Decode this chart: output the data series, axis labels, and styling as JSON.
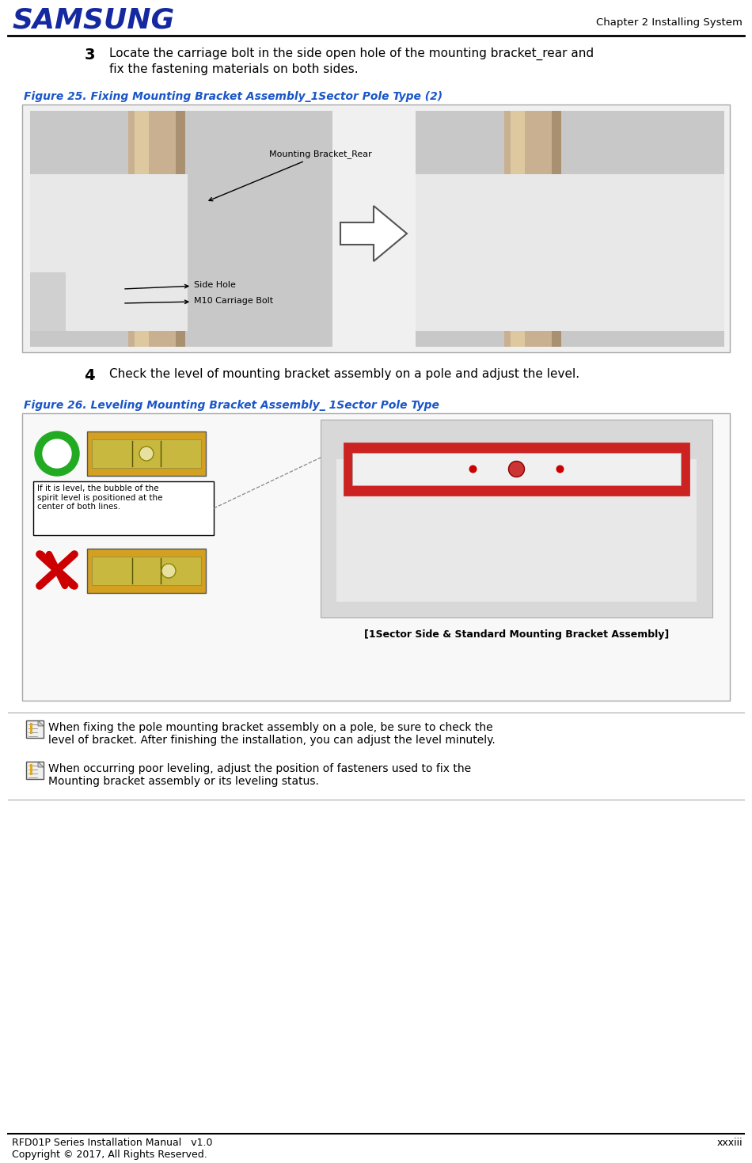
{
  "page_bg": "#ffffff",
  "samsung_text": "SAMSUNG",
  "samsung_color": "#1428A0",
  "chapter_text": "Chapter 2 Installing System",
  "footer_left": "RFD01P Series Installation Manual   v1.0",
  "footer_right": "xxxiii",
  "footer_line2": "Copyright © 2017, All Rights Reserved.",
  "step3_number": "3",
  "step3_text_line1": "Locate the carriage bolt in the side open hole of the mounting bracket_rear and",
  "step3_text_line2": "fix the fastening materials on both sides.",
  "fig25_caption": "Figure 25. Fixing Mounting Bracket Assembly_1Sector Pole Type (2)",
  "fig25_caption_color": "#1a56c8",
  "fig25_box_border": "#a0a0a0",
  "fig25_annotation1": "Mounting Bracket_Rear",
  "fig25_annotation2": "Side Hole",
  "fig25_annotation3": "M10 Carriage Bolt",
  "step4_number": "4",
  "step4_text": "Check the level of mounting bracket assembly on a pole and adjust the level.",
  "fig26_caption": "Figure 26. Leveling Mounting Bracket Assembly_ 1Sector Pole Type",
  "fig26_caption_color": "#1a56c8",
  "fig26_box_border": "#a0a0a0",
  "fig26_label_text": "[1Sector Side & Standard Mounting Bracket Assembly]",
  "fig26_note1": "If it is level, the bubble of the\nspirit level is positioned at the\ncenter of both lines.",
  "note1_text_line1": "When fixing the pole mounting bracket assembly on a pole, be sure to check the",
  "note1_text_line2": "level of bracket. After finishing the installation, you can adjust the level minutely.",
  "note2_text_line1": "When occurring poor leveling, adjust the position of fasteners used to fix the",
  "note2_text_line2": "Mounting bracket assembly or its leveling status.",
  "fig25_bg": "#e8e8e8",
  "fig26_bg": "#f5f5f5",
  "img_bg_light": "#d0d0d0",
  "img_bg_dark": "#b8b8b8",
  "pole_color": "#c8b89a",
  "bracket_color": "#e8e8e8"
}
